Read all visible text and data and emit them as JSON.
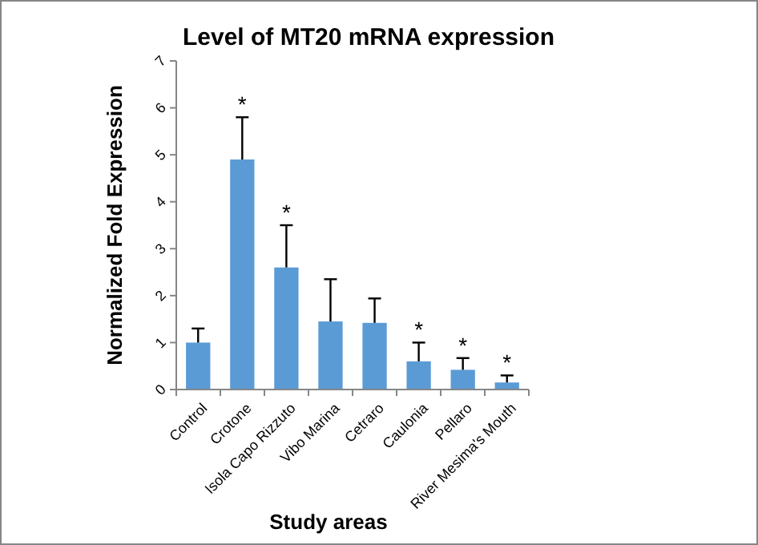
{
  "chart_data": {
    "type": "bar",
    "title": "Level of MT20 mRNA expression",
    "xlabel": "Study areas",
    "ylabel": "Normalized Fold Expression",
    "categories": [
      "Control",
      "Crotone",
      "Isola Capo Rizzuto",
      "Vibo Marina",
      "Cetraro",
      "Caulonia",
      "Pellaro",
      "River Mesima's Mouth"
    ],
    "values": [
      1.0,
      4.9,
      2.6,
      1.45,
      1.42,
      0.6,
      0.42,
      0.15
    ],
    "errors": [
      [
        1.0,
        1.3
      ],
      [
        4.9,
        5.8
      ],
      [
        2.6,
        3.5
      ],
      [
        1.45,
        2.35
      ],
      [
        1.42,
        1.94
      ],
      [
        0.6,
        1.0
      ],
      [
        0.42,
        0.67
      ],
      [
        0.15,
        0.3
      ]
    ],
    "color": "#5b9bd5",
    "ylim": [
      0,
      7
    ],
    "yticks": [
      0,
      1,
      2,
      3,
      4,
      5,
      6,
      7
    ],
    "annotations": [
      {
        "text": "*",
        "x": "Crotone",
        "y": 5.8
      },
      {
        "text": "*",
        "x": "Isola Capo Rizzuto",
        "y": 3.5
      },
      {
        "text": "*",
        "x": "Caulonia",
        "y": 1.0
      },
      {
        "text": "*",
        "x": "Pellaro",
        "y": 0.67
      },
      {
        "text": "*",
        "x": "River Mesima's Mouth",
        "y": 0.3
      }
    ]
  }
}
